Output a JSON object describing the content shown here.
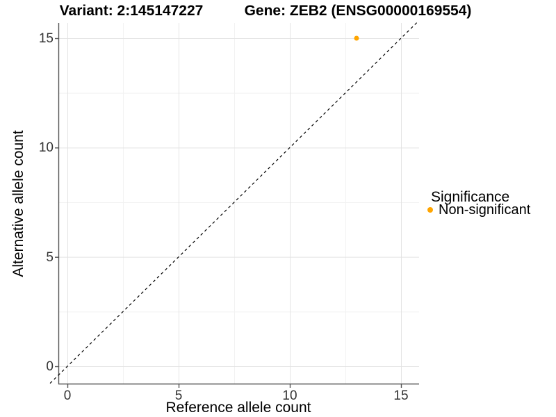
{
  "titles": {
    "left": "Variant: 2:145147227",
    "right": "Gene: ZEB2 (ENSG00000169554)"
  },
  "chart_data": {
    "type": "scatter",
    "xlabel": "Reference allele count",
    "ylabel": "Alternative allele count",
    "xticks": [
      0,
      5,
      10,
      15
    ],
    "yticks": [
      0,
      5,
      10,
      15
    ],
    "xlim": [
      -0.8,
      15.8
    ],
    "ylim": [
      -0.8,
      15.7
    ],
    "grid": "major and minor gridlines on white background",
    "points": [
      {
        "x": 13,
        "y": 15,
        "series": "Non-significant"
      }
    ],
    "reference_line": {
      "slope": 1,
      "intercept": 0,
      "style": "dashed",
      "color": "#000000"
    },
    "legend": {
      "title": "Significance",
      "position": "right",
      "items": [
        {
          "label": "Non-significant",
          "color": "#FFA500"
        }
      ]
    },
    "colors": {
      "point": "#FFA500",
      "grid_major": "#E3E3E3",
      "grid_minor": "#F2F2F2",
      "axis": "#555555",
      "tick_text": "#333333"
    }
  }
}
